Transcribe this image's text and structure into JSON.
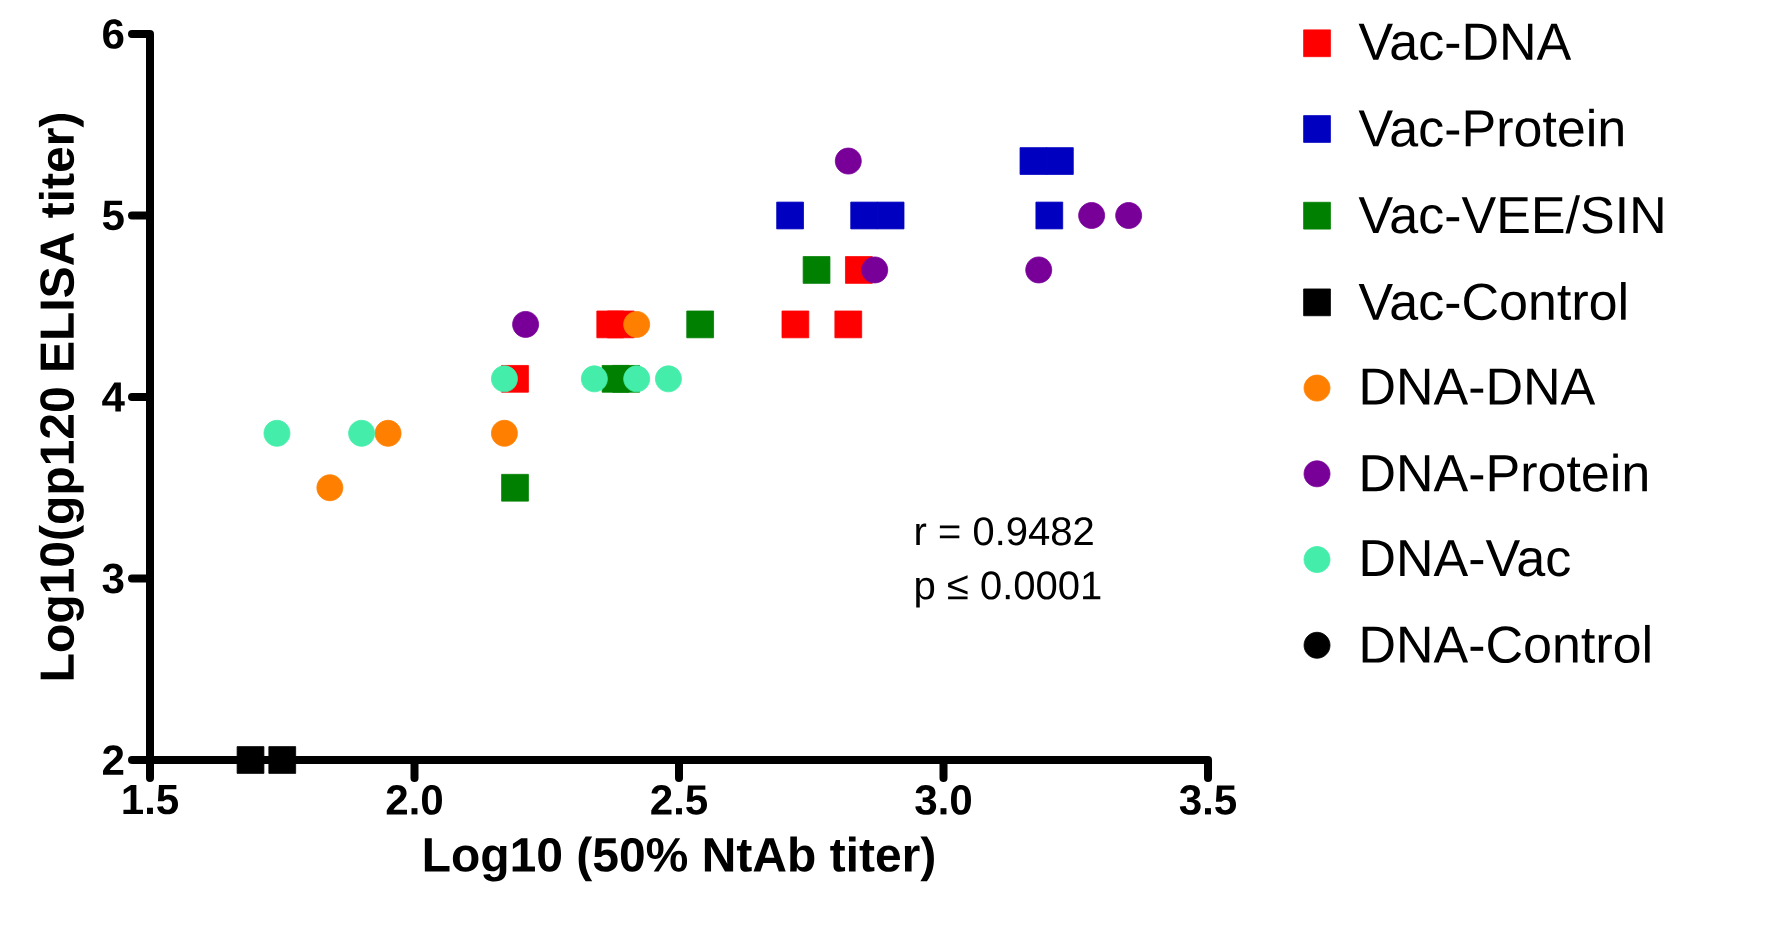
{
  "chart_data": {
    "type": "scatter",
    "xlabel": "Log10 (50% NtAb titer)",
    "ylabel": "Log10(gp120 ELISA titer)",
    "xlim": [
      1.5,
      3.5
    ],
    "ylim": [
      2,
      6
    ],
    "xticks": [
      1.5,
      {
        "value": 2,
        "label": "2.0"
      },
      2.5,
      {
        "value": 3,
        "label": "3.0"
      },
      3.5
    ],
    "yticks": [
      2,
      3,
      4,
      5,
      6
    ],
    "grid": false,
    "legend": "right",
    "annotations": [
      "r = 0.9482",
      "p ≤ 0.0001"
    ],
    "series": [
      {
        "name": "Vac-DNA",
        "color": "#ff0000",
        "marker": "square",
        "x": [
          2.19,
          2.37,
          2.39,
          2.72,
          2.82,
          2.84
        ],
        "values": [
          4.1,
          4.4,
          4.4,
          4.4,
          4.4,
          4.7
        ]
      },
      {
        "name": "Vac-Protein",
        "color": "#0000c0",
        "marker": "square",
        "x": [
          2.71,
          2.85,
          2.9,
          3.17,
          3.22,
          3.2
        ],
        "values": [
          5.0,
          5.0,
          5.0,
          5.3,
          5.3,
          5.0
        ]
      },
      {
        "name": "Vac-VEE/SIN",
        "color": "#008000",
        "marker": "square",
        "x": [
          2.19,
          2.54,
          2.38,
          2.4,
          2.76
        ],
        "values": [
          3.5,
          4.4,
          4.1,
          4.1,
          4.7
        ]
      },
      {
        "name": "Vac-Control",
        "color": "#000000",
        "marker": "square",
        "x": [
          1.69,
          1.75
        ],
        "values": [
          2,
          2
        ]
      },
      {
        "name": "DNA-DNA",
        "color": "#ff8000",
        "marker": "circle",
        "x": [
          2.42,
          1.95,
          2.17,
          1.84
        ],
        "values": [
          4.4,
          3.8,
          3.8,
          3.5
        ]
      },
      {
        "name": "DNA-Protein",
        "color": "#780099",
        "marker": "circle",
        "x": [
          2.21,
          2.82,
          2.87,
          3.18,
          3.28,
          3.35
        ],
        "values": [
          4.4,
          5.3,
          4.7,
          4.7,
          5.0,
          5.0
        ]
      },
      {
        "name": "DNA-Vac",
        "color": "#44eeaa",
        "marker": "circle",
        "x": [
          1.74,
          1.9,
          2.17,
          2.34,
          2.42,
          2.48
        ],
        "values": [
          3.8,
          3.8,
          4.1,
          4.1,
          4.1,
          4.1
        ]
      },
      {
        "name": "DNA-Control",
        "color": "#000000",
        "marker": "circle"
      }
    ]
  }
}
